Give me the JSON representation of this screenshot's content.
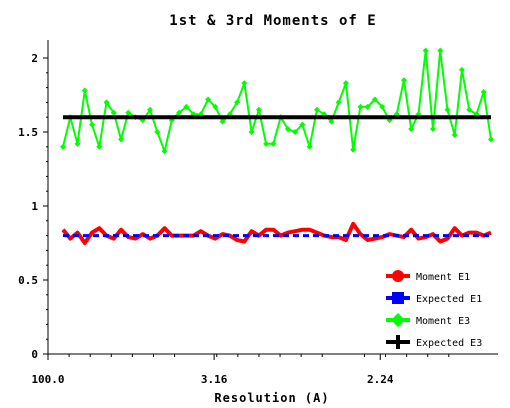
{
  "chart_data": {
    "type": "line",
    "title": "1st & 3rd Moments of E",
    "xlabel": "Resolution (A)",
    "ylabel": "",
    "xlim": [
      0,
      62
    ],
    "ylim": [
      0,
      2.1
    ],
    "x_ticks": [
      {
        "x": 0,
        "label": "100.0"
      },
      {
        "x": 21,
        "label": "3.16"
      },
      {
        "x": 42,
        "label": "2.24"
      }
    ],
    "y_ticks": [
      {
        "y": 0,
        "label": "0"
      },
      {
        "y": 0.5,
        "label": "0.5"
      },
      {
        "y": 1.0,
        "label": "1"
      },
      {
        "y": 1.5,
        "label": "1.5"
      },
      {
        "y": 2.0,
        "label": "2"
      }
    ],
    "legend_position": "bottom-right",
    "series": [
      {
        "name": "Moment E1",
        "color": "#ff0000",
        "marker": "circle",
        "values": [
          0.84,
          0.78,
          0.82,
          0.75,
          0.82,
          0.85,
          0.8,
          0.78,
          0.84,
          0.79,
          0.78,
          0.81,
          0.78,
          0.8,
          0.85,
          0.8,
          0.8,
          0.8,
          0.8,
          0.83,
          0.8,
          0.78,
          0.81,
          0.8,
          0.77,
          0.76,
          0.83,
          0.8,
          0.84,
          0.84,
          0.8,
          0.82,
          0.83,
          0.84,
          0.84,
          0.82,
          0.8,
          0.79,
          0.79,
          0.77,
          0.88,
          0.81,
          0.77,
          0.78,
          0.79,
          0.81,
          0.8,
          0.79,
          0.84,
          0.78,
          0.79,
          0.81,
          0.76,
          0.78,
          0.85,
          0.8,
          0.82,
          0.82,
          0.8,
          0.82
        ]
      },
      {
        "name": "Expected E1",
        "color": "#0000ff",
        "marker": "square",
        "values": [
          0.8,
          0.8,
          0.8,
          0.8,
          0.8,
          0.8,
          0.8,
          0.8,
          0.8,
          0.8,
          0.8,
          0.8,
          0.8,
          0.8,
          0.8,
          0.8,
          0.8,
          0.8,
          0.8,
          0.8,
          0.8,
          0.8,
          0.8,
          0.8,
          0.8,
          0.8,
          0.8,
          0.8,
          0.8,
          0.8,
          0.8,
          0.8,
          0.8,
          0.8,
          0.8,
          0.8,
          0.8,
          0.8,
          0.8,
          0.8,
          0.8,
          0.8,
          0.8,
          0.8,
          0.8,
          0.8,
          0.8,
          0.8,
          0.8,
          0.8,
          0.8,
          0.8,
          0.8,
          0.8,
          0.8,
          0.8,
          0.8,
          0.8,
          0.8,
          0.8
        ]
      },
      {
        "name": "Moment E3",
        "color": "#00ff00",
        "marker": "diamond",
        "values": [
          1.4,
          1.6,
          1.42,
          1.78,
          1.55,
          1.4,
          1.7,
          1.63,
          1.45,
          1.63,
          1.6,
          1.58,
          1.65,
          1.5,
          1.37,
          1.58,
          1.63,
          1.67,
          1.62,
          1.62,
          1.72,
          1.67,
          1.57,
          1.62,
          1.7,
          1.83,
          1.5,
          1.65,
          1.42,
          1.42,
          1.6,
          1.52,
          1.5,
          1.55,
          1.4,
          1.65,
          1.62,
          1.57,
          1.7,
          1.83,
          1.38,
          1.67,
          1.67,
          1.72,
          1.67,
          1.58,
          1.62,
          1.85,
          1.52,
          1.62,
          2.05,
          1.52,
          2.05,
          1.65,
          1.48,
          1.92,
          1.65,
          1.62,
          1.77,
          1.45
        ]
      },
      {
        "name": "Expected E3",
        "color": "#000000",
        "marker": "plus",
        "values": [
          1.6,
          1.6,
          1.6,
          1.6,
          1.6,
          1.6,
          1.6,
          1.6,
          1.6,
          1.6,
          1.6,
          1.6,
          1.6,
          1.6,
          1.6,
          1.6,
          1.6,
          1.6,
          1.6,
          1.6,
          1.6,
          1.6,
          1.6,
          1.6,
          1.6,
          1.6,
          1.6,
          1.6,
          1.6,
          1.6,
          1.6,
          1.6,
          1.6,
          1.6,
          1.6,
          1.6,
          1.6,
          1.6,
          1.6,
          1.6,
          1.6,
          1.6,
          1.6,
          1.6,
          1.6,
          1.6,
          1.6,
          1.6,
          1.6,
          1.6,
          1.6,
          1.6,
          1.6,
          1.6,
          1.6,
          1.6,
          1.6,
          1.6,
          1.6,
          1.6
        ]
      }
    ]
  }
}
